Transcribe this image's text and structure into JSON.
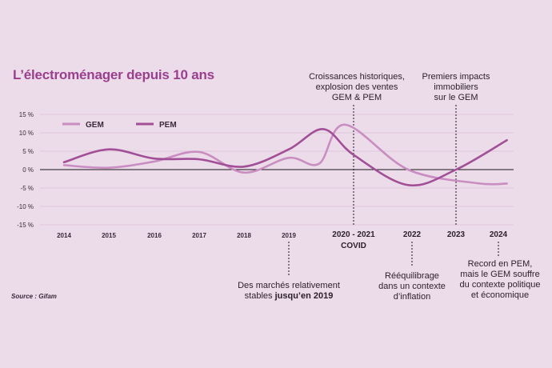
{
  "title": "L’électroménager depuis 10 ans",
  "source": "Source : Gifam",
  "colors": {
    "gem": "#c98dc1",
    "pem": "#a24f98",
    "title": "#9a3e8e"
  },
  "chart_data": {
    "type": "line",
    "title": "L’électroménager depuis 10 ans",
    "categories": [
      "2014",
      "2015",
      "2016",
      "2017",
      "2018",
      "2019",
      "2020 - 2021",
      "2022",
      "2023",
      "2024"
    ],
    "period_label": "COVID",
    "ylim": [
      -15,
      15
    ],
    "yticks": [
      "15 %",
      "10 %",
      "5 %",
      "0 %",
      "-5 %",
      "-10 %",
      "-15 %"
    ],
    "ytick_values": [
      15,
      10,
      5,
      0,
      -5,
      -10,
      -15
    ],
    "legend": [
      "GEM",
      "PEM"
    ],
    "series": [
      {
        "name": "GEM",
        "x": [
          2014,
          2015,
          2016,
          2017,
          2018,
          2019,
          2019.7,
          2020.3,
          2021.9,
          2023.5,
          2024.2
        ],
        "values": [
          1.2,
          0.5,
          2.2,
          4.8,
          -0.8,
          3.2,
          1.6,
          12.2,
          0.0,
          -3.7,
          -3.8
        ]
      },
      {
        "name": "PEM",
        "x": [
          2014,
          2015,
          2016,
          2017,
          2018,
          2019,
          2019.8,
          2020.5,
          2021.9,
          2023.0,
          2024.2
        ],
        "values": [
          2.0,
          5.5,
          3.0,
          2.8,
          0.8,
          5.5,
          11.0,
          4.0,
          -4.2,
          0.0,
          8.0
        ]
      }
    ],
    "annotations": {
      "covid": [
        "Croissances historiques,",
        "explosion des ventes",
        "GEM & PEM"
      ],
      "impacts": [
        "Premiers impacts",
        "immobiliers",
        "sur le GEM"
      ],
      "stable": [
        "Des marchés relativement",
        "stables ",
        "jusqu’en 2019"
      ],
      "inflation": [
        "Rééquilibrage",
        "dans un contexte",
        "d’inflation"
      ],
      "record": [
        "Record en PEM,",
        "mais le GEM souffre",
        "du contexte politique",
        "et économique"
      ]
    }
  }
}
